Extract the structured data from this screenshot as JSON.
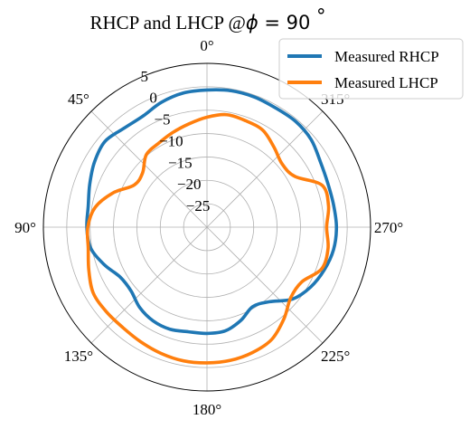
{
  "chart_data": {
    "type": "line",
    "projection": "polar",
    "title_prefix": "RHCP and LHCP @",
    "title_symbol": "ϕ",
    "title_value": " = 90 ",
    "title_degree": "°",
    "theta_zero_location": "top",
    "theta_direction": "counterclockwise",
    "angle_ticks": [
      {
        "deg": 0,
        "label": "0°"
      },
      {
        "deg": 45,
        "label": "45°"
      },
      {
        "deg": 90,
        "label": "90°"
      },
      {
        "deg": 135,
        "label": "135°"
      },
      {
        "deg": 180,
        "label": "180°"
      },
      {
        "deg": 225,
        "label": "225°"
      },
      {
        "deg": 270,
        "label": "270°"
      },
      {
        "deg": 315,
        "label": "315°"
      }
    ],
    "radial_ticks": [
      {
        "value": -25,
        "label": "−25"
      },
      {
        "value": -20,
        "label": "−20"
      },
      {
        "value": -15,
        "label": "−15"
      },
      {
        "value": -10,
        "label": "−10"
      },
      {
        "value": -5,
        "label": "−5"
      },
      {
        "value": 0,
        "label": "0"
      },
      {
        "value": 5,
        "label": "5"
      }
    ],
    "rlim": [
      -30,
      5
    ],
    "grid": true,
    "legend_position": "top-right",
    "x_unit": "deg",
    "series": [
      {
        "name": "Measured RHCP",
        "color": "#1f77b4",
        "x": [
          0,
          10,
          20,
          30,
          40,
          50,
          60,
          70,
          80,
          90,
          100,
          110,
          120,
          130,
          140,
          150,
          160,
          170,
          180,
          190,
          200,
          210,
          220,
          230,
          240,
          250,
          260,
          270,
          280,
          290,
          300,
          310,
          320,
          330,
          340,
          350,
          360
        ],
        "y": [
          -0.7,
          -0.9,
          -1.6,
          -2.6,
          -2.4,
          -1.5,
          -2.2,
          -3.3,
          -4.2,
          -4.3,
          -4.7,
          -6.6,
          -8.6,
          -8.8,
          -7.6,
          -6.9,
          -6.8,
          -7.3,
          -7.3,
          -7.5,
          -8.8,
          -10.4,
          -9.2,
          -6.1,
          -4.4,
          -3.3,
          -2.5,
          -2.3,
          -2.5,
          -2.5,
          -2.0,
          -0.9,
          -0.5,
          -0.6,
          -0.4,
          -0.4,
          -0.7
        ]
      },
      {
        "name": "Measured LHCP",
        "color": "#ff7f0e",
        "x": [
          0,
          10,
          20,
          30,
          40,
          50,
          60,
          70,
          80,
          90,
          100,
          110,
          120,
          130,
          140,
          150,
          160,
          170,
          180,
          190,
          200,
          210,
          220,
          230,
          240,
          250,
          260,
          270,
          280,
          290,
          300,
          310,
          320,
          330,
          340,
          350,
          360
        ],
        "y": [
          -6.5,
          -7.6,
          -8.5,
          -9.3,
          -9.8,
          -12.0,
          -12.0,
          -8.6,
          -5.7,
          -4.5,
          -4.2,
          -3.1,
          -1.9,
          -1.9,
          -2.0,
          -1.7,
          -1.3,
          -1.0,
          -1.0,
          -1.1,
          -1.5,
          -2.3,
          -4.4,
          -6.6,
          -6.6,
          -3.9,
          -3.7,
          -4.4,
          -3.6,
          -3.8,
          -8.3,
          -9.0,
          -7.7,
          -6.1,
          -5.8,
          -5.6,
          -6.5
        ]
      }
    ]
  }
}
